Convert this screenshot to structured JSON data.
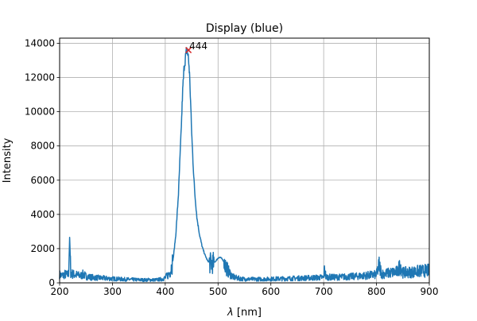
{
  "chart_data": {
    "type": "line",
    "title": "Display (blue)",
    "xlabel_symbol": "λ",
    "xlabel_unit": " [nm]",
    "ylabel": "Intensity",
    "xlim": [
      200,
      900
    ],
    "ylim": [
      0,
      14300
    ],
    "xticks": [
      200,
      300,
      400,
      500,
      600,
      700,
      800,
      900
    ],
    "yticks": [
      0,
      2000,
      4000,
      6000,
      8000,
      10000,
      12000,
      14000
    ],
    "grid": true,
    "series": [
      {
        "color": "#1f77b4",
        "x": [
          200,
          205,
          210,
          215,
          217,
          219,
          221,
          225,
          230,
          235,
          240,
          245,
          250,
          255,
          260,
          270,
          280,
          290,
          300,
          310,
          320,
          330,
          340,
          350,
          360,
          370,
          380,
          390,
          395,
          400,
          405,
          410,
          415,
          420,
          425,
          430,
          433,
          436,
          439,
          441,
          443,
          444,
          446,
          448,
          450,
          453,
          456,
          460,
          465,
          470,
          475,
          480,
          485,
          490,
          495,
          500,
          503,
          506,
          510,
          515,
          520,
          525,
          530,
          540,
          550,
          560,
          570,
          580,
          590,
          600,
          620,
          640,
          660,
          680,
          700,
          702,
          704,
          720,
          740,
          760,
          780,
          800,
          805,
          810,
          820,
          830,
          840,
          845,
          850,
          860,
          870,
          880,
          890,
          900
        ],
        "y": [
          480,
          420,
          500,
          450,
          600,
          2600,
          600,
          500,
          480,
          440,
          420,
          500,
          380,
          350,
          330,
          300,
          280,
          260,
          240,
          230,
          210,
          200,
          190,
          180,
          170,
          180,
          170,
          200,
          230,
          300,
          450,
          700,
          1400,
          2800,
          5200,
          8800,
          11200,
          12700,
          13300,
          13600,
          13300,
          13100,
          12200,
          10600,
          8800,
          6800,
          5200,
          3800,
          2800,
          2100,
          1650,
          1300,
          1150,
          1150,
          1250,
          1450,
          1500,
          1450,
          1300,
          950,
          650,
          450,
          320,
          260,
          220,
          220,
          210,
          220,
          220,
          230,
          240,
          260,
          280,
          300,
          320,
          950,
          340,
          330,
          350,
          380,
          430,
          480,
          1050,
          520,
          560,
          600,
          650,
          1050,
          600,
          620,
          640,
          680,
          700,
          720
        ]
      }
    ],
    "annotation": {
      "text": "444",
      "x": 444,
      "y": 13600,
      "marker_color": "#d62728"
    }
  }
}
